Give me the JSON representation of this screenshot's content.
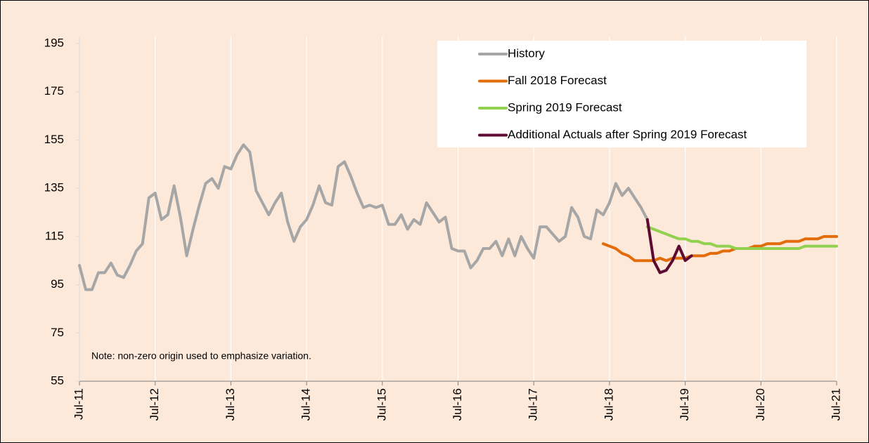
{
  "chart_data": {
    "type": "line",
    "note": "Note: non-zero origin used to emphasize variation.",
    "categories": [
      "Jul-11",
      null,
      null,
      null,
      null,
      null,
      null,
      null,
      null,
      null,
      null,
      null,
      "Jul-12",
      null,
      null,
      null,
      null,
      null,
      null,
      null,
      null,
      null,
      null,
      null,
      "Jul-13",
      null,
      null,
      null,
      null,
      null,
      null,
      null,
      null,
      null,
      null,
      null,
      "Jul-14",
      null,
      null,
      null,
      null,
      null,
      null,
      null,
      null,
      null,
      null,
      null,
      "Jul-15",
      null,
      null,
      null,
      null,
      null,
      null,
      null,
      null,
      null,
      null,
      null,
      "Jul-16",
      null,
      null,
      null,
      null,
      null,
      null,
      null,
      null,
      null,
      null,
      null,
      "Jul-17",
      null,
      null,
      null,
      null,
      null,
      null,
      null,
      null,
      null,
      null,
      null,
      "Jul-18",
      null,
      null,
      null,
      null,
      null,
      null,
      null,
      null,
      null,
      null,
      null,
      "Jul-19",
      null,
      null,
      null,
      null,
      null,
      null,
      null,
      null,
      null,
      null,
      null,
      "Jul-20",
      null,
      null,
      null,
      null,
      null,
      null,
      null,
      null,
      null,
      null,
      null,
      "Jul-21"
    ],
    "series": [
      {
        "name": "History",
        "color": "#a6a6a6",
        "values": [
          103,
          93,
          93,
          100,
          100,
          104,
          99,
          98,
          103,
          109,
          112,
          131,
          133,
          122,
          124,
          136,
          123,
          107,
          118,
          128,
          137,
          139,
          135,
          144,
          143,
          149,
          153,
          150,
          134,
          129,
          124,
          129,
          133,
          121,
          113,
          119,
          122,
          128,
          136,
          129,
          128,
          144,
          146,
          140,
          133,
          127,
          128,
          127,
          128,
          120,
          120,
          124,
          118,
          122,
          120,
          129,
          125,
          121,
          123,
          110,
          109,
          109,
          102,
          105,
          110,
          110,
          113,
          107,
          114,
          107,
          115,
          110,
          106,
          119,
          119,
          116,
          113,
          115,
          127,
          123,
          115,
          114,
          126,
          124,
          129,
          137,
          132,
          135,
          131,
          127,
          122,
          null,
          null,
          null,
          null,
          null,
          null,
          null,
          null,
          null,
          null,
          null,
          null,
          null,
          null,
          null,
          null,
          null,
          null,
          null,
          null,
          null,
          null,
          null,
          null,
          null,
          null,
          null,
          null,
          null,
          null
        ]
      },
      {
        "name": "Fall 2018 Forecast",
        "color": "#e36c0a",
        "values": [
          null,
          null,
          null,
          null,
          null,
          null,
          null,
          null,
          null,
          null,
          null,
          null,
          null,
          null,
          null,
          null,
          null,
          null,
          null,
          null,
          null,
          null,
          null,
          null,
          null,
          null,
          null,
          null,
          null,
          null,
          null,
          null,
          null,
          null,
          null,
          null,
          null,
          null,
          null,
          null,
          null,
          null,
          null,
          null,
          null,
          null,
          null,
          null,
          null,
          null,
          null,
          null,
          null,
          null,
          null,
          null,
          null,
          null,
          null,
          null,
          null,
          null,
          null,
          null,
          null,
          null,
          null,
          null,
          null,
          null,
          null,
          null,
          null,
          null,
          null,
          null,
          null,
          null,
          null,
          null,
          null,
          null,
          null,
          112,
          111,
          110,
          108,
          107,
          105,
          105,
          105,
          105,
          106,
          105,
          106,
          106,
          106,
          107,
          107,
          107,
          108,
          108,
          109,
          109,
          110,
          110,
          110,
          111,
          111,
          112,
          112,
          112,
          113,
          113,
          113,
          114,
          114,
          114,
          115,
          115,
          115
        ]
      },
      {
        "name": "Spring 2019 Forecast",
        "color": "#92d050",
        "values": [
          null,
          null,
          null,
          null,
          null,
          null,
          null,
          null,
          null,
          null,
          null,
          null,
          null,
          null,
          null,
          null,
          null,
          null,
          null,
          null,
          null,
          null,
          null,
          null,
          null,
          null,
          null,
          null,
          null,
          null,
          null,
          null,
          null,
          null,
          null,
          null,
          null,
          null,
          null,
          null,
          null,
          null,
          null,
          null,
          null,
          null,
          null,
          null,
          null,
          null,
          null,
          null,
          null,
          null,
          null,
          null,
          null,
          null,
          null,
          null,
          null,
          null,
          null,
          null,
          null,
          null,
          null,
          null,
          null,
          null,
          null,
          null,
          null,
          null,
          null,
          null,
          null,
          null,
          null,
          null,
          null,
          null,
          null,
          null,
          null,
          null,
          null,
          null,
          null,
          null,
          119,
          118,
          117,
          116,
          115,
          114,
          114,
          113,
          113,
          112,
          112,
          111,
          111,
          111,
          110,
          110,
          110,
          110,
          110,
          110,
          110,
          110,
          110,
          110,
          110,
          111,
          111,
          111,
          111,
          111,
          111
        ]
      },
      {
        "name": "Additional Actuals after Spring 2019 Forecast",
        "color": "#5c0a32",
        "values": [
          null,
          null,
          null,
          null,
          null,
          null,
          null,
          null,
          null,
          null,
          null,
          null,
          null,
          null,
          null,
          null,
          null,
          null,
          null,
          null,
          null,
          null,
          null,
          null,
          null,
          null,
          null,
          null,
          null,
          null,
          null,
          null,
          null,
          null,
          null,
          null,
          null,
          null,
          null,
          null,
          null,
          null,
          null,
          null,
          null,
          null,
          null,
          null,
          null,
          null,
          null,
          null,
          null,
          null,
          null,
          null,
          null,
          null,
          null,
          null,
          null,
          null,
          null,
          null,
          null,
          null,
          null,
          null,
          null,
          null,
          null,
          null,
          null,
          null,
          null,
          null,
          null,
          null,
          null,
          null,
          null,
          null,
          null,
          null,
          null,
          null,
          null,
          null,
          null,
          null,
          122,
          105,
          100,
          101,
          105,
          111,
          105,
          107,
          null,
          null,
          null,
          null,
          null,
          null,
          null,
          null,
          null,
          null,
          null,
          null,
          null,
          null,
          null,
          null,
          null,
          null,
          null,
          null,
          null,
          null,
          null
        ]
      }
    ],
    "ylim": [
      55,
      195
    ],
    "yticks": [
      55,
      75,
      95,
      115,
      135,
      155,
      175,
      195
    ],
    "grid": true,
    "legend": "upper-right"
  }
}
